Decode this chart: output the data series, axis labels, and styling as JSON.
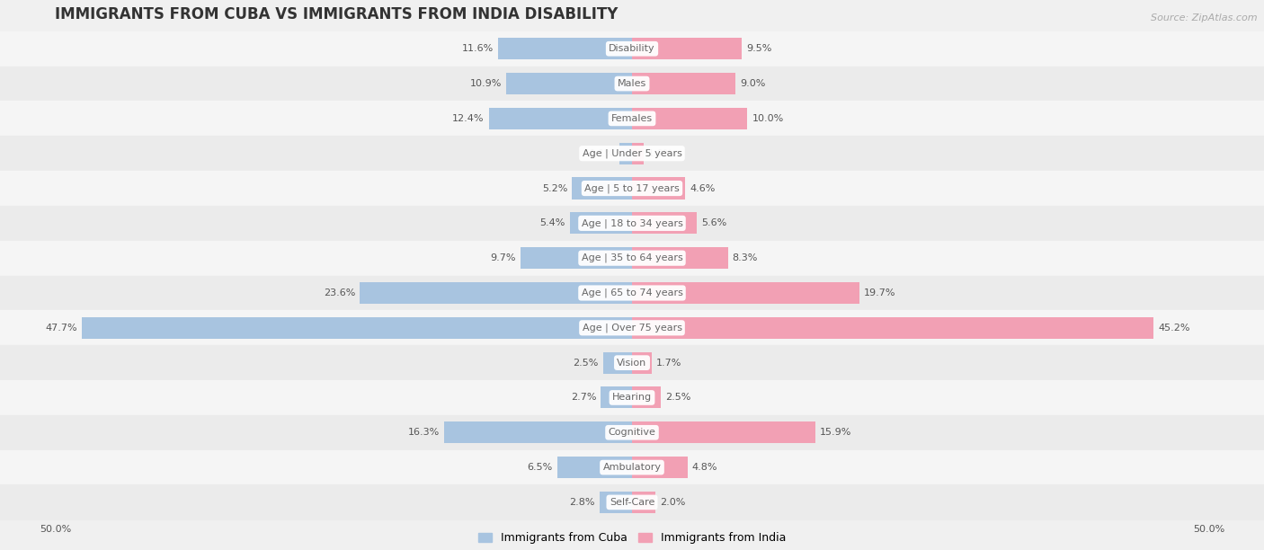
{
  "title": "IMMIGRANTS FROM CUBA VS IMMIGRANTS FROM INDIA DISABILITY",
  "source": "Source: ZipAtlas.com",
  "categories": [
    "Disability",
    "Males",
    "Females",
    "Age | Under 5 years",
    "Age | 5 to 17 years",
    "Age | 18 to 34 years",
    "Age | 35 to 64 years",
    "Age | 65 to 74 years",
    "Age | Over 75 years",
    "Vision",
    "Hearing",
    "Cognitive",
    "Ambulatory",
    "Self-Care"
  ],
  "cuba_values": [
    11.6,
    10.9,
    12.4,
    1.1,
    5.2,
    5.4,
    9.7,
    23.6,
    47.7,
    2.5,
    2.7,
    16.3,
    6.5,
    2.8
  ],
  "india_values": [
    9.5,
    9.0,
    10.0,
    1.0,
    4.6,
    5.6,
    8.3,
    19.7,
    45.2,
    1.7,
    2.5,
    15.9,
    4.8,
    2.0
  ],
  "cuba_color": "#a8c4e0",
  "india_color": "#f2a0b4",
  "cuba_label": "Immigrants from Cuba",
  "india_label": "Immigrants from India",
  "xlim": 50.0,
  "background_color": "#f0f0f0",
  "row_bg_odd": "#ebebeb",
  "row_bg_even": "#f5f5f5",
  "title_fontsize": 12,
  "source_fontsize": 8,
  "value_fontsize": 8,
  "category_fontsize": 8,
  "legend_fontsize": 9
}
